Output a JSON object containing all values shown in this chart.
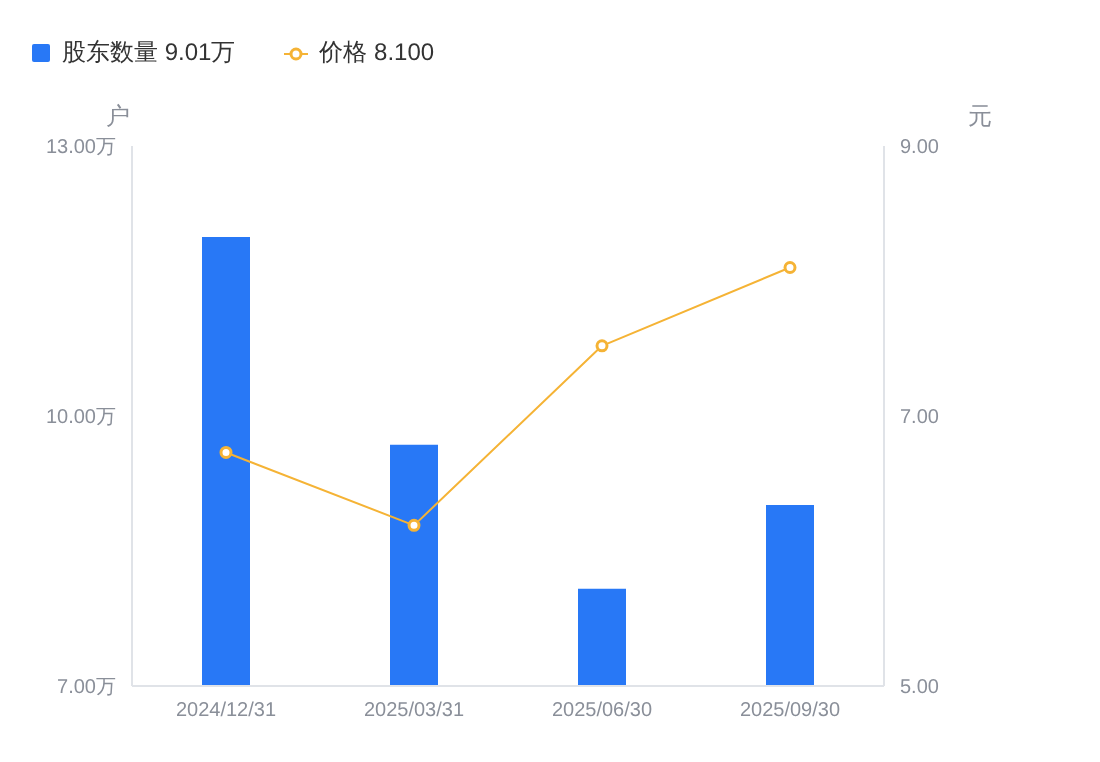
{
  "chart_data": {
    "type": "bar",
    "categories": [
      "2024/12/31",
      "2025/03/31",
      "2025/06/30",
      "2025/09/30"
    ],
    "series": [
      {
        "name": "股东数量 9.01万",
        "color": "#2878f6",
        "values": [
          11.99,
          9.68,
          8.08,
          9.01
        ]
      },
      {
        "name": "价格 8.100",
        "type": "line",
        "axis": "y2",
        "color": "#f5b335",
        "values": [
          6.73,
          6.19,
          7.52,
          8.1
        ]
      }
    ],
    "ylabel": "户",
    "y2label": "元",
    "ylim": [
      7,
      13
    ],
    "yticks": [
      {
        "value": 7,
        "label": "7.00万"
      },
      {
        "value": 10,
        "label": "10.00万"
      },
      {
        "value": 13,
        "label": "13.00万"
      }
    ],
    "y2lim": [
      5,
      9
    ],
    "y2ticks": [
      {
        "value": 5,
        "label": "5.00"
      },
      {
        "value": 7,
        "label": "7.00"
      },
      {
        "value": 9,
        "label": "9.00"
      }
    ],
    "grid": false,
    "legend": "top left",
    "marker": "circle",
    "line_style": "solid"
  }
}
